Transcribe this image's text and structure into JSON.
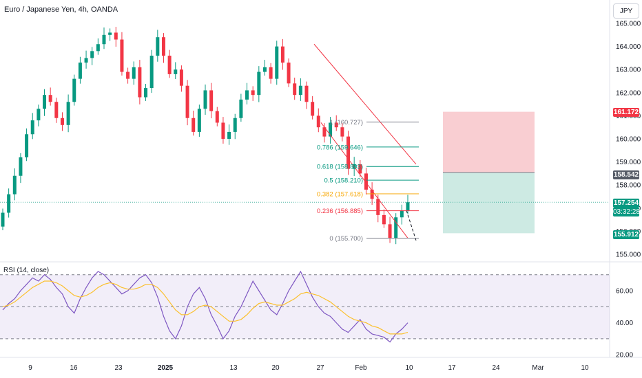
{
  "header": {
    "title": "Euro / Japanese Yen, 4h, OANDA",
    "currency": "JPY"
  },
  "rsi": {
    "title": "RSI (14, close)"
  },
  "badges": {
    "stop": "161.172",
    "entry": "158.542",
    "last_price": "157.254",
    "countdown": "03:32:28",
    "target": "155.912"
  },
  "colors": {
    "up": "#089981",
    "down": "#f23645",
    "accent_red": "#f23645",
    "gold": "#f7a600",
    "rsi_line": "#7e57c2",
    "rsi_ma": "#fbc02d",
    "loss_zone": "#f8c9cd",
    "profit_zone": "#c8e8e0",
    "last_price_bg": "#089981",
    "target_bg": "#089981"
  },
  "chart_data": [
    {
      "type": "candlestick",
      "title": "Euro / Japanese Yen, 4h, OANDA",
      "price_axis_ticks": [
        "165.000",
        "164.000",
        "163.000",
        "162.000",
        "161.000",
        "160.000",
        "159.000",
        "158.000",
        "157.000",
        "156.000",
        "155.000"
      ],
      "ylim": [
        154.5,
        165.5
      ],
      "time_axis_ticks": [
        "9",
        "16",
        "23",
        "2025",
        "13",
        "20",
        "27",
        "Feb",
        "10",
        "17",
        "24",
        "Mar",
        "10"
      ],
      "approx_closes": [
        156.8,
        157.6,
        158.4,
        159.2,
        160.2,
        160.8,
        161.3,
        161.9,
        161.6,
        160.9,
        160.6,
        161.6,
        162.6,
        163.3,
        163.5,
        163.8,
        164.1,
        164.5,
        164.6,
        164.3,
        162.9,
        162.6,
        163.1,
        161.8,
        162.2,
        163.6,
        164.4,
        163.6,
        162.8,
        163.0,
        162.3,
        160.9,
        160.3,
        161.3,
        162.1,
        161.2,
        160.7,
        160.0,
        160.3,
        160.9,
        161.7,
        162.1,
        161.9,
        162.9,
        163.1,
        162.6,
        164.0,
        163.3,
        162.4,
        161.9,
        162.3,
        161.6,
        161.0,
        160.5,
        160.1,
        160.7,
        160.5,
        160.1,
        158.7,
        158.9,
        158.5,
        157.8,
        157.4,
        156.7,
        156.3,
        155.7,
        156.6,
        156.9,
        157.254
      ],
      "fibonacci": [
        {
          "label": "1 (160.727)",
          "value": 160.727
        },
        {
          "label": "0.786 (159.646)",
          "value": 159.646
        },
        {
          "label": "0.618 (158.803)",
          "value": 158.803
        },
        {
          "label": "0.5 (158.210)",
          "value": 158.21
        },
        {
          "label": "0.382 (157.618)",
          "value": 157.618
        },
        {
          "label": "0.236 (156.885)",
          "value": 156.885
        },
        {
          "label": "0 (155.700)",
          "value": 155.7
        }
      ],
      "channel": {
        "upper": [
          [
            "Jan 27",
            164.1
          ],
          [
            "Feb 13",
            158.9
          ]
        ],
        "lower": [
          [
            "Jan 24",
            160.7
          ],
          [
            "Feb 10",
            155.7
          ]
        ]
      },
      "position": {
        "stop": 161.172,
        "entry": 158.542,
        "target": 155.912
      },
      "last_price": 157.254
    },
    {
      "type": "line",
      "title": "RSI (14, close)",
      "yticks": [
        "60.00",
        "40.00",
        "20.00"
      ],
      "ylim": [
        15,
        78
      ],
      "bands": [
        30,
        50,
        70
      ],
      "series": [
        {
          "values": [
            48,
            52,
            55,
            60,
            64,
            68,
            66,
            70,
            67,
            62,
            58,
            50,
            46,
            55,
            62,
            68,
            72,
            70,
            66,
            62,
            58,
            60,
            64,
            68,
            70,
            65,
            56,
            44,
            35,
            30,
            38,
            50,
            58,
            62,
            55,
            45,
            38,
            30,
            35,
            44,
            50,
            58,
            66,
            60,
            54,
            48,
            45,
            52,
            60,
            66,
            72,
            64,
            56,
            50,
            46,
            44,
            40,
            36,
            34,
            38,
            42,
            36,
            33,
            32,
            31,
            28,
            33,
            36,
            40
          ]
        },
        {
          "values": [
            50,
            51,
            53,
            56,
            59,
            62,
            64,
            66,
            66,
            65,
            63,
            60,
            57,
            56,
            57,
            59,
            62,
            64,
            65,
            64,
            62,
            61,
            61,
            62,
            64,
            64,
            62,
            58,
            53,
            48,
            45,
            45,
            47,
            50,
            51,
            50,
            47,
            44,
            41,
            41,
            42,
            45,
            49,
            52,
            53,
            52,
            51,
            51,
            53,
            55,
            58,
            59,
            58,
            57,
            55,
            53,
            50,
            47,
            44,
            42,
            41,
            40,
            38,
            37,
            35,
            33,
            33,
            33,
            34
          ]
        }
      ]
    }
  ]
}
